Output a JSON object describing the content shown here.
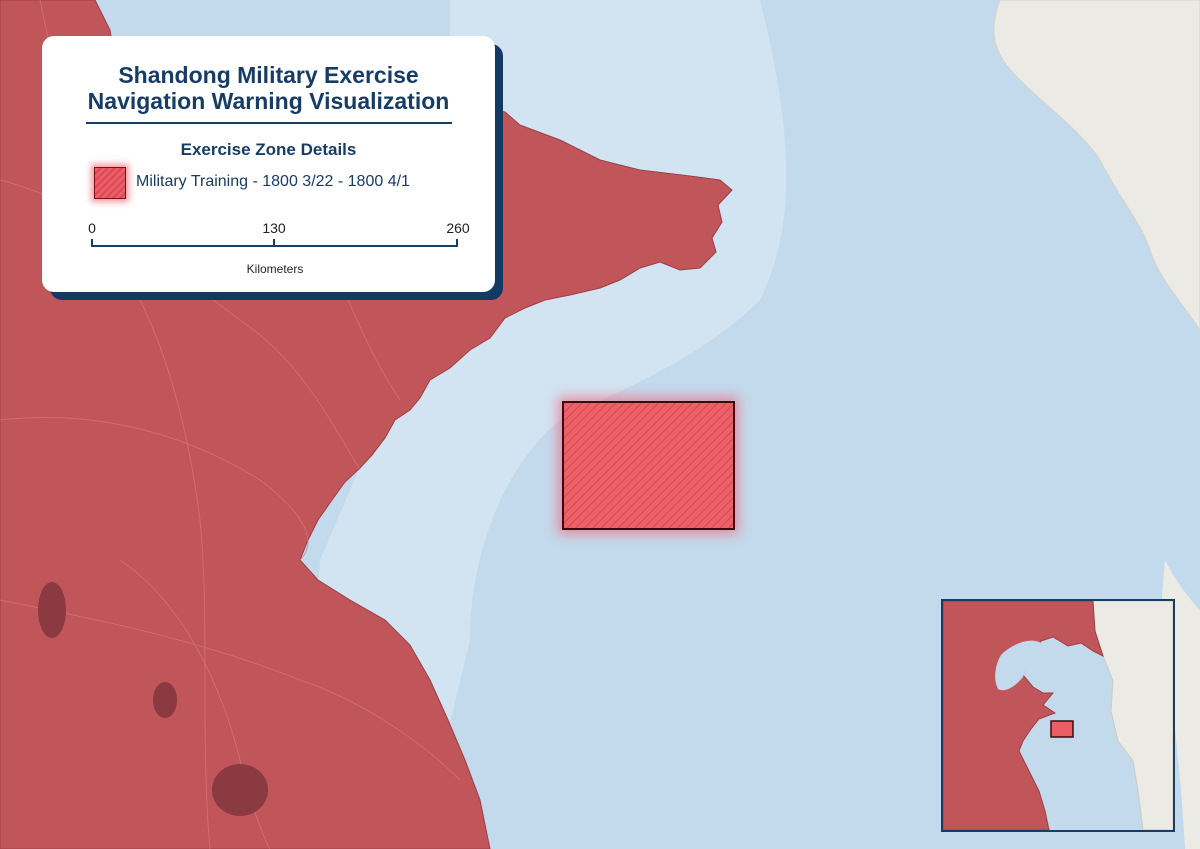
{
  "legend": {
    "title_line1": "Shandong Military Exercise",
    "title_line2": "Navigation Warning Visualization",
    "subtitle": "Exercise Zone Details",
    "zone_label": "Military Training - 1800 3/22 - 1800 4/1",
    "scale_ticks": [
      "0",
      "130",
      "260"
    ],
    "scale_unit": "Kilometers"
  },
  "colors": {
    "land_highlight": "#c0555a",
    "sea": "#c3d9ec",
    "zone_fill": "#ec5e66",
    "zone_border": "#7a1020",
    "legend_accent": "#173c66",
    "neighbor_land": "#eceae4"
  }
}
